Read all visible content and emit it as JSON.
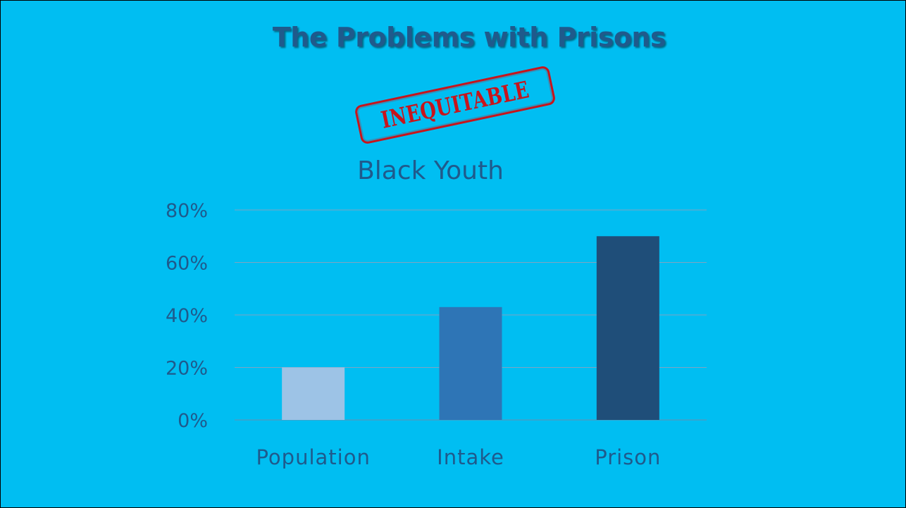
{
  "slide": {
    "title": "The Problems with Prisons",
    "stamp_text": "INEQUITABLE",
    "background_color": "#00bef2",
    "stamp_color": "#c8141b"
  },
  "chart_data": {
    "type": "bar",
    "title": "Black Youth",
    "categories": [
      "Population",
      "Intake",
      "Prison"
    ],
    "values": [
      0.2,
      0.43,
      0.7
    ],
    "bar_colors": [
      "#9dc3e6",
      "#2e75b6",
      "#1f4e79"
    ],
    "ylim": [
      0,
      0.8
    ],
    "yticks": [
      0,
      0.2,
      0.4,
      0.6,
      0.8
    ],
    "ytick_labels": [
      "0%",
      "20%",
      "40%",
      "60%",
      "80%"
    ],
    "xlabel": "",
    "ylabel": "",
    "grid": true,
    "legend": "none"
  }
}
